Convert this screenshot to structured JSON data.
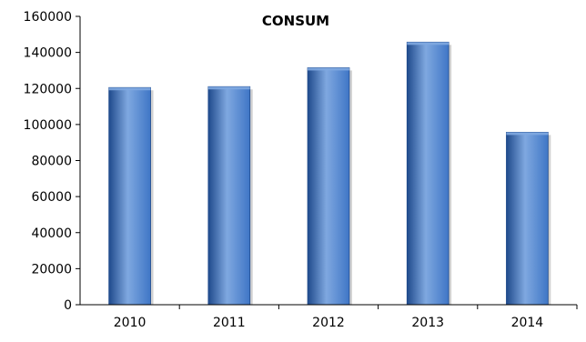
{
  "chart_data": {
    "type": "bar",
    "title": "CONSUM",
    "xlabel": "",
    "ylabel": "",
    "categories": [
      "2010",
      "2011",
      "2012",
      "2013",
      "2014"
    ],
    "values": [
      120500,
      121000,
      131500,
      145700,
      95700
    ],
    "ylim": [
      0,
      160000
    ],
    "yticks": [
      0,
      20000,
      40000,
      60000,
      80000,
      100000,
      120000,
      140000,
      160000
    ],
    "grid": false,
    "legend": "none",
    "colors": {
      "bar_light": "#7fa8e0",
      "bar_mid": "#3f76c6",
      "bar_dark": "#1f4a8c",
      "axis": "#000000"
    }
  }
}
